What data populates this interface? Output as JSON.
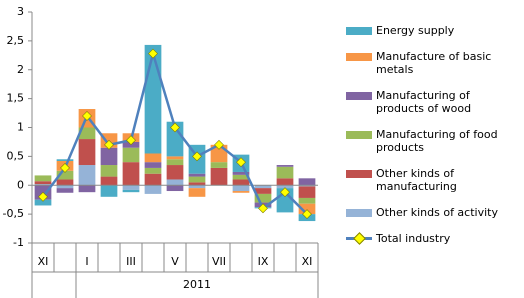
{
  "chart_data": {
    "type": "stacked-bar-line",
    "categories": [
      "XI",
      null,
      "I",
      null,
      "III",
      null,
      "V",
      null,
      "VII",
      null,
      "IX",
      null,
      "XI"
    ],
    "x_group_label": "2011",
    "series": [
      {
        "name": "Other kinds of activity",
        "color": "#95b3d7",
        "values": [
          0.02,
          -0.05,
          0.35,
          0,
          -0.08,
          -0.15,
          0.1,
          -0.05,
          0,
          -0.1,
          -0.05,
          -0.05,
          -0.02
        ]
      },
      {
        "name": "Other kinds of manufacturing",
        "color": "#c0504d",
        "values": [
          0.05,
          0.1,
          0.45,
          0.15,
          0.4,
          0.2,
          0.25,
          0.05,
          0.3,
          0.1,
          -0.1,
          0.12,
          -0.2
        ]
      },
      {
        "name": "Manufacturing of food products",
        "color": "#9bbb59",
        "values": [
          0.1,
          0.15,
          0.2,
          0.2,
          0.25,
          0.1,
          0.1,
          0.1,
          0.1,
          0.08,
          -0.15,
          0.2,
          -0.1
        ]
      },
      {
        "name": "Manufacturing of products of wood",
        "color": "#8064a2",
        "values": [
          -0.25,
          -0.08,
          -0.12,
          0.3,
          0.1,
          0.1,
          -0.1,
          0.05,
          0,
          0.05,
          -0.08,
          0.03,
          0.12
        ]
      },
      {
        "name": "Manufacture of basic metals",
        "color": "#f79646",
        "values": [
          0,
          0.17,
          0.32,
          0.25,
          0.15,
          0.15,
          0.05,
          -0.15,
          0.3,
          -0.03,
          0,
          0,
          -0.18
        ]
      },
      {
        "name": "Energy supply",
        "color": "#4bacc6",
        "values": [
          -0.1,
          0.03,
          0,
          -0.2,
          -0.04,
          1.88,
          0.6,
          0.5,
          0,
          0.3,
          -0.02,
          -0.42,
          -0.12
        ]
      }
    ],
    "line": {
      "name": "Total industry",
      "color": "#4f81bd",
      "marker_color": "#ffff00",
      "values": [
        -0.2,
        0.3,
        1.2,
        0.7,
        0.78,
        2.28,
        1.0,
        0.5,
        0.7,
        0.4,
        -0.4,
        -0.12,
        -0.5
      ]
    },
    "ylim": [
      -1,
      3
    ],
    "yticks": [
      -1,
      {
        "value": -0.5,
        "label": "-0,5"
      },
      0,
      {
        "value": 0.5,
        "label": "0,5"
      },
      1,
      {
        "value": 1.5,
        "label": "1,5"
      },
      2,
      {
        "value": 2.5,
        "label": "2,5"
      },
      3
    ],
    "grid": false
  }
}
